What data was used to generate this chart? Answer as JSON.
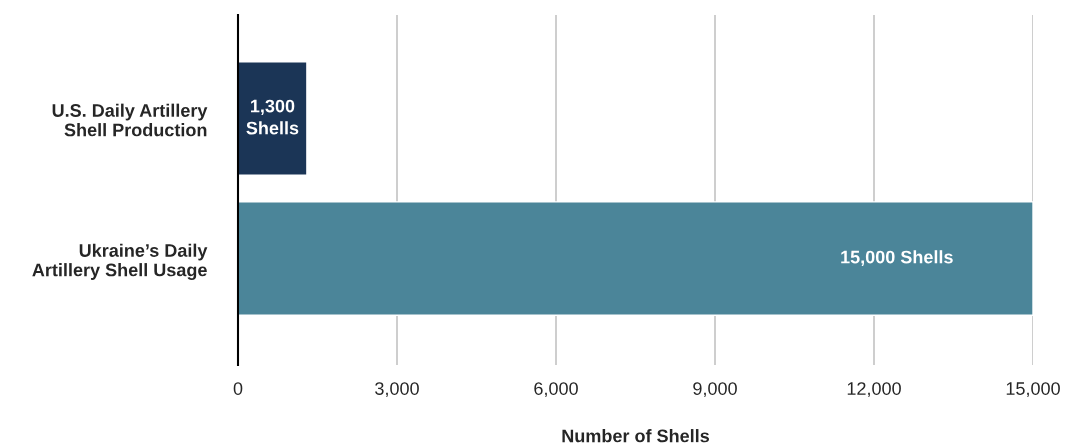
{
  "chart_data": {
    "type": "bar",
    "orientation": "horizontal",
    "categories": [
      "U.S. Daily Artillery\nShell Production",
      "Ukraine’s Daily\nArtillery Shell Usage"
    ],
    "values": [
      1300,
      15000
    ],
    "colors": [
      "#1b3556",
      "#4b8599"
    ],
    "value_labels": [
      "1,300 Shells",
      "15,000 Shells"
    ],
    "xlabel": "Number of Shells",
    "xlim": [
      0,
      15000
    ],
    "xticks": [
      0,
      {
        "value": 3000,
        "label": "3,000"
      },
      {
        "value": 6000,
        "label": "6,000"
      },
      {
        "value": 9000,
        "label": "9,000"
      },
      {
        "value": 12000,
        "label": "12,000"
      },
      {
        "value": 15000,
        "label": "15,000"
      }
    ],
    "grid": "x"
  }
}
